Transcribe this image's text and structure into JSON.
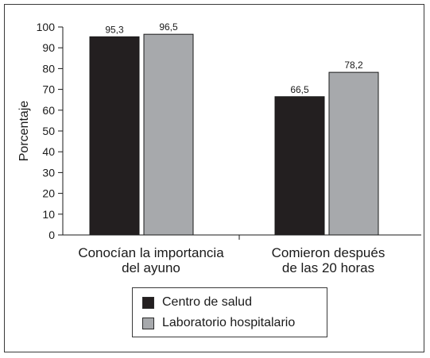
{
  "chart_data": {
    "type": "bar",
    "categories": [
      [
        "Conocían la importancia",
        "del ayuno"
      ],
      [
        "Comieron después",
        "de las 20 horas"
      ]
    ],
    "series": [
      {
        "name": "Centro de salud",
        "values": [
          95.3,
          66.5
        ],
        "labels": [
          "95,3",
          "66,5"
        ],
        "color": "#231f20"
      },
      {
        "name": "Laboratorio hospitalario",
        "values": [
          96.5,
          78.2
        ],
        "labels": [
          "96,5",
          "78,2"
        ],
        "color": "#a7a9ac"
      }
    ],
    "ylabel": "Porcentaje",
    "ylim": [
      0,
      100
    ],
    "yticks": [
      0,
      10,
      20,
      30,
      40,
      50,
      60,
      70,
      80,
      90,
      100
    ],
    "grid": false,
    "legend_position": "bottom-center"
  }
}
